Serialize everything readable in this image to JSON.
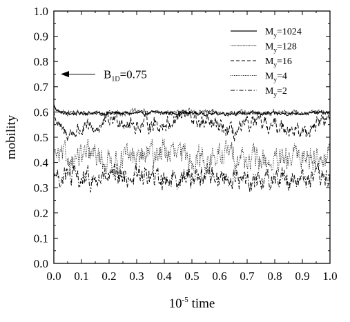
{
  "chart_data": {
    "type": "line",
    "title": "",
    "xlabel": {
      "base": "10",
      "exponent": "-5",
      "text": "time"
    },
    "ylabel": "mobility",
    "xlim": [
      0.0,
      1.0
    ],
    "ylim": [
      0.0,
      1.0
    ],
    "xticks": [
      "0.0",
      "0.1",
      "0.2",
      "0.3",
      "0.4",
      "0.5",
      "0.6",
      "0.7",
      "0.8",
      "0.9",
      "1.0"
    ],
    "yticks": [
      "0.0",
      "0.1",
      "0.2",
      "0.3",
      "0.4",
      "0.5",
      "0.6",
      "0.7",
      "0.8",
      "0.9",
      "1.0"
    ],
    "grid": false,
    "legend_position": "top-right",
    "annotation": {
      "main": "B",
      "sub": "1D",
      "value": "=0.75",
      "y": 0.75,
      "arrow": "points-left-to-y-axis"
    },
    "series": [
      {
        "name": "M",
        "sub": "y",
        "suffix": "=1024",
        "style": "solid",
        "mean": 0.595,
        "noise": 0.004,
        "slow": 0.002,
        "start": 0.63
      },
      {
        "name": "M",
        "sub": "y",
        "suffix": "=128",
        "style": "dotted-dense",
        "mean": 0.597,
        "noise": 0.006,
        "slow": 0.003,
        "start": 0.62
      },
      {
        "name": "M",
        "sub": "y",
        "suffix": "=16",
        "style": "dashed",
        "mean": 0.55,
        "noise": 0.018,
        "slow": 0.03,
        "start": 0.6
      },
      {
        "name": "M",
        "sub": "y",
        "suffix": "=4",
        "style": "dotted",
        "mean": 0.42,
        "noise": 0.03,
        "slow": 0.02,
        "start": 0.45
      },
      {
        "name": "M",
        "sub": "y",
        "suffix": "=2",
        "style": "dash-dot",
        "mean": 0.34,
        "noise": 0.025,
        "slow": 0.01,
        "start": 0.36
      }
    ]
  }
}
